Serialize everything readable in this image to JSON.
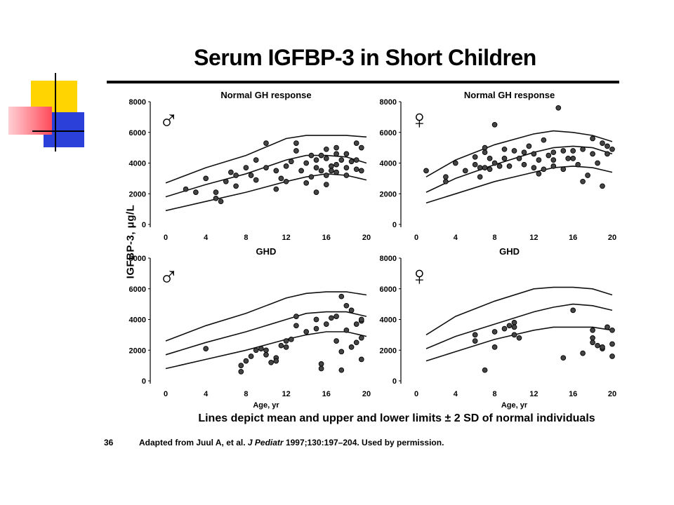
{
  "slide": {
    "title": "Serum IGFBP-3 in Short Children",
    "y_axis_label": "IGFBP-3, μg/L",
    "caption": "Lines depict mean and upper and lower limits ± 2 SD of normal individuals",
    "slide_number": "36",
    "source_prefix": "Adapted from Juul A, et al. ",
    "source_journal": "J Pediatr",
    "source_suffix": " 1997;130:197–204. Used by permission.",
    "accent_colors": {
      "yellow": "#ffd400",
      "red": "#ff4a5a",
      "blue": "#2b3fd9"
    }
  },
  "chart_data": [
    {
      "type": "scatter",
      "panel": "top-left",
      "sex_symbol": "♂",
      "title": "Normal GH  response",
      "xlim": [
        0,
        20
      ],
      "ylim": [
        0,
        8000
      ],
      "x_ticks": [
        "0",
        "4",
        "8",
        "12",
        "16",
        "20"
      ],
      "y_ticks": [
        "0",
        "2000",
        "4000",
        "6000",
        "8000"
      ],
      "xlabel": "",
      "reference_lines": {
        "x": [
          0,
          4,
          8,
          12,
          14,
          16,
          18,
          20
        ],
        "upper": [
          2700,
          3700,
          4500,
          5600,
          5800,
          5800,
          5800,
          5700
        ],
        "mean": [
          1800,
          2600,
          3300,
          4200,
          4500,
          4500,
          4400,
          4000
        ],
        "lower": [
          900,
          1500,
          2100,
          2800,
          3100,
          3300,
          3200,
          2900
        ]
      },
      "points": [
        [
          2,
          2300
        ],
        [
          3,
          2100
        ],
        [
          4,
          3000
        ],
        [
          5,
          2100
        ],
        [
          5,
          1700
        ],
        [
          5.5,
          1500
        ],
        [
          6,
          2800
        ],
        [
          6.5,
          3400
        ],
        [
          7,
          2500
        ],
        [
          7,
          3200
        ],
        [
          8,
          3700
        ],
        [
          8.5,
          3200
        ],
        [
          9,
          2900
        ],
        [
          9,
          4200
        ],
        [
          10,
          3700
        ],
        [
          10,
          5300
        ],
        [
          11,
          2300
        ],
        [
          11,
          3500
        ],
        [
          11.5,
          3000
        ],
        [
          12,
          3800
        ],
        [
          12,
          2800
        ],
        [
          12.5,
          4100
        ],
        [
          13,
          4800
        ],
        [
          13,
          5300
        ],
        [
          13.5,
          3500
        ],
        [
          14,
          4000
        ],
        [
          14,
          2700
        ],
        [
          14.5,
          4500
        ],
        [
          14.5,
          3100
        ],
        [
          15,
          4200
        ],
        [
          15,
          3700
        ],
        [
          15,
          2100
        ],
        [
          15.5,
          3500
        ],
        [
          15.5,
          4500
        ],
        [
          16,
          4900
        ],
        [
          16,
          3200
        ],
        [
          16,
          2600
        ],
        [
          16.5,
          3800
        ],
        [
          16.5,
          3500
        ],
        [
          17,
          4600
        ],
        [
          17,
          3900
        ],
        [
          17,
          3400
        ],
        [
          17.5,
          4200
        ],
        [
          18,
          4600
        ],
        [
          18,
          3700
        ],
        [
          18,
          3200
        ],
        [
          18.5,
          4100
        ],
        [
          19,
          3600
        ],
        [
          19,
          4200
        ],
        [
          19,
          5300
        ],
        [
          19.5,
          5000
        ],
        [
          19.5,
          3500
        ],
        [
          16,
          4300
        ],
        [
          17,
          5000
        ]
      ]
    },
    {
      "type": "scatter",
      "panel": "top-right",
      "sex_symbol": "♀",
      "title": "Normal GH response",
      "xlim": [
        0,
        20
      ],
      "ylim": [
        0,
        8000
      ],
      "x_ticks": [
        "0",
        "4",
        "8",
        "12",
        "16",
        "20"
      ],
      "y_ticks": [
        "0",
        "2000",
        "4000",
        "6000",
        "8000"
      ],
      "xlabel": "",
      "reference_lines": {
        "x": [
          1,
          4,
          8,
          12,
          14,
          16,
          18,
          20
        ],
        "upper": [
          3100,
          4200,
          5200,
          5900,
          6100,
          6000,
          5800,
          5400
        ],
        "mean": [
          2100,
          3000,
          3900,
          4700,
          5000,
          5100,
          5000,
          4600
        ],
        "lower": [
          1400,
          2000,
          2800,
          3400,
          3700,
          3800,
          3700,
          3400
        ]
      },
      "points": [
        [
          1,
          3500
        ],
        [
          3,
          2800
        ],
        [
          3,
          3100
        ],
        [
          4,
          4000
        ],
        [
          5,
          3500
        ],
        [
          6,
          4400
        ],
        [
          6,
          3900
        ],
        [
          6.5,
          3700
        ],
        [
          6.5,
          3100
        ],
        [
          7,
          5000
        ],
        [
          7,
          4700
        ],
        [
          7,
          3700
        ],
        [
          7.5,
          4300
        ],
        [
          7.5,
          3600
        ],
        [
          8,
          4000
        ],
        [
          8,
          6500
        ],
        [
          8.5,
          3800
        ],
        [
          9,
          4900
        ],
        [
          9,
          4300
        ],
        [
          9.5,
          3800
        ],
        [
          10,
          4800
        ],
        [
          10.5,
          4300
        ],
        [
          11,
          3900
        ],
        [
          11,
          4700
        ],
        [
          11.5,
          5100
        ],
        [
          12,
          4600
        ],
        [
          12,
          3700
        ],
        [
          12.5,
          4200
        ],
        [
          12.5,
          3300
        ],
        [
          13,
          3600
        ],
        [
          13,
          5500
        ],
        [
          13.5,
          4500
        ],
        [
          14,
          4700
        ],
        [
          14,
          4200
        ],
        [
          14,
          3800
        ],
        [
          14.5,
          7600
        ],
        [
          15,
          4800
        ],
        [
          15,
          3600
        ],
        [
          15.5,
          4300
        ],
        [
          16,
          4300
        ],
        [
          16,
          4800
        ],
        [
          16.5,
          3900
        ],
        [
          17,
          2800
        ],
        [
          17,
          4900
        ],
        [
          17.5,
          3200
        ],
        [
          18,
          4600
        ],
        [
          18,
          5600
        ],
        [
          18.5,
          4000
        ],
        [
          19,
          5300
        ],
        [
          19,
          2500
        ],
        [
          19.5,
          4600
        ],
        [
          19.5,
          5100
        ],
        [
          20,
          4900
        ]
      ]
    },
    {
      "type": "scatter",
      "panel": "bottom-left",
      "sex_symbol": "♂",
      "title": "GHD",
      "xlim": [
        0,
        20
      ],
      "ylim": [
        0,
        8000
      ],
      "x_ticks": [
        "0",
        "4",
        "8",
        "12",
        "16",
        "20"
      ],
      "y_ticks": [
        "0",
        "2000",
        "4000",
        "6000",
        "8000"
      ],
      "xlabel": "Age, yr",
      "reference_lines": {
        "x": [
          0,
          4,
          8,
          12,
          14,
          16,
          18,
          20
        ],
        "upper": [
          2600,
          3600,
          4400,
          5400,
          5700,
          5800,
          5800,
          5600
        ],
        "mean": [
          1700,
          2500,
          3200,
          4000,
          4400,
          4500,
          4500,
          4200
        ],
        "lower": [
          800,
          1400,
          2000,
          2700,
          3000,
          3200,
          3200,
          2900
        ]
      },
      "points": [
        [
          4,
          2100
        ],
        [
          7.5,
          600
        ],
        [
          7.5,
          1000
        ],
        [
          8,
          1300
        ],
        [
          8.5,
          1600
        ],
        [
          9,
          2000
        ],
        [
          9.5,
          2100
        ],
        [
          10,
          2000
        ],
        [
          10,
          1700
        ],
        [
          10.5,
          1200
        ],
        [
          11,
          1500
        ],
        [
          11,
          1300
        ],
        [
          11.5,
          2300
        ],
        [
          12,
          2200
        ],
        [
          12,
          2600
        ],
        [
          12.5,
          2700
        ],
        [
          13,
          4200
        ],
        [
          13,
          3600
        ],
        [
          14,
          3200
        ],
        [
          15,
          4000
        ],
        [
          15,
          3400
        ],
        [
          15.5,
          1100
        ],
        [
          15.5,
          800
        ],
        [
          16,
          3700
        ],
        [
          16.5,
          4100
        ],
        [
          17,
          2600
        ],
        [
          17,
          4200
        ],
        [
          17.5,
          5500
        ],
        [
          17.5,
          1900
        ],
        [
          17.5,
          700
        ],
        [
          18,
          4900
        ],
        [
          18,
          3300
        ],
        [
          18.5,
          4600
        ],
        [
          18.5,
          2200
        ],
        [
          19,
          2500
        ],
        [
          19,
          3700
        ],
        [
          19.5,
          3900
        ],
        [
          19.5,
          4000
        ],
        [
          19.5,
          2800
        ],
        [
          19.5,
          1400
        ]
      ]
    },
    {
      "type": "scatter",
      "panel": "bottom-right",
      "sex_symbol": "♀",
      "title": "GHD",
      "xlim": [
        0,
        20
      ],
      "ylim": [
        0,
        8000
      ],
      "x_ticks": [
        "0",
        "4",
        "8",
        "12",
        "16",
        "20"
      ],
      "y_ticks": [
        "0",
        "2000",
        "4000",
        "6000",
        "8000"
      ],
      "xlabel": "Age, yr",
      "reference_lines": {
        "x": [
          1,
          4,
          8,
          12,
          14,
          16,
          18,
          20
        ],
        "upper": [
          3000,
          4200,
          5200,
          6000,
          6100,
          6100,
          6000,
          5600
        ],
        "mean": [
          2100,
          2900,
          3700,
          4500,
          4800,
          5000,
          4900,
          4600
        ],
        "lower": [
          1300,
          1900,
          2700,
          3300,
          3500,
          3500,
          3500,
          3300
        ]
      },
      "points": [
        [
          6,
          2600
        ],
        [
          6,
          3000
        ],
        [
          7,
          700
        ],
        [
          8,
          3200
        ],
        [
          8,
          2200
        ],
        [
          9,
          3400
        ],
        [
          9.5,
          3600
        ],
        [
          10,
          3800
        ],
        [
          10,
          3500
        ],
        [
          10,
          3000
        ],
        [
          10.5,
          2800
        ],
        [
          15,
          1500
        ],
        [
          16,
          4600
        ],
        [
          17,
          1800
        ],
        [
          18,
          3300
        ],
        [
          18,
          2800
        ],
        [
          18,
          2500
        ],
        [
          18.5,
          2300
        ],
        [
          19,
          2100
        ],
        [
          19,
          2200
        ],
        [
          19.5,
          3500
        ],
        [
          20,
          1600
        ],
        [
          20,
          2400
        ],
        [
          20,
          3300
        ]
      ]
    }
  ]
}
